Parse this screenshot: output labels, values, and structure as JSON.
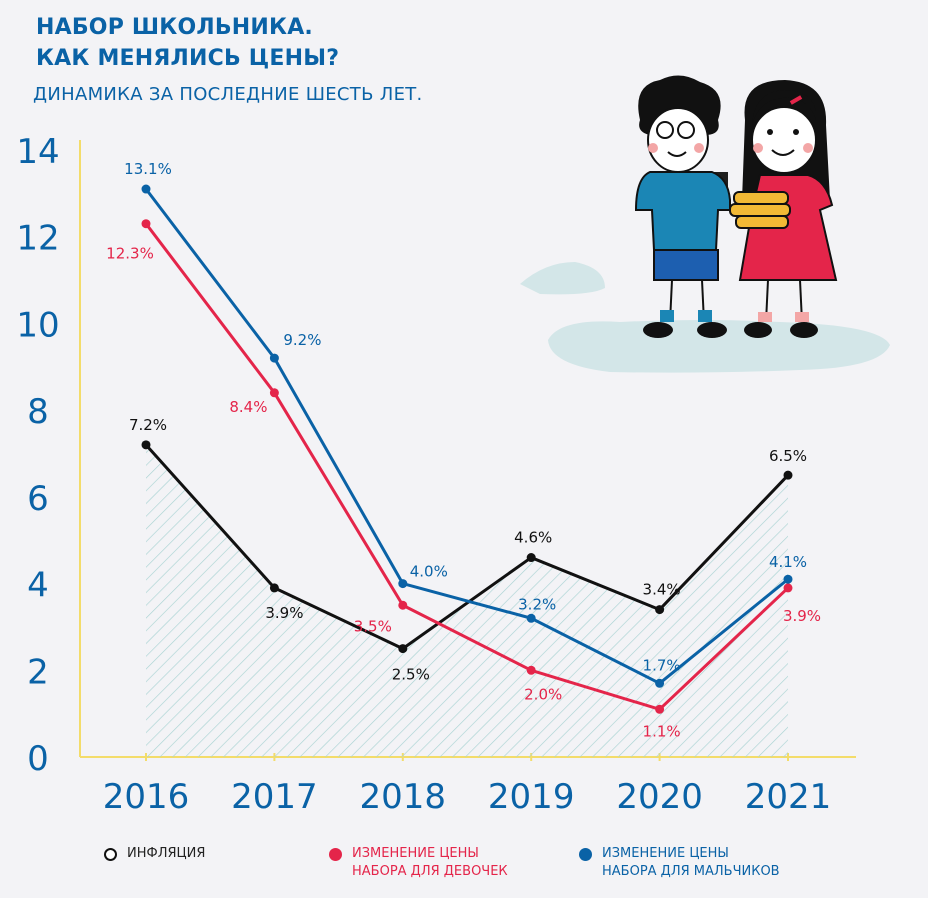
{
  "header": {
    "title_line1": "НАБОР ШКОЛЬНИКА.",
    "title_line2": "КАК МЕНЯЛИСЬ ЦЕНЫ?",
    "subtitle": "ДИНАМИКА ЗА ПОСЛЕДНИЕ ШЕСТЬ ЛЕТ."
  },
  "colors": {
    "inflation": "#111111",
    "girls": "#e4254a",
    "boys": "#0a62a6",
    "axis": "#f3dc6a",
    "hatch": "#a9d3d3",
    "title": "#0a62a6"
  },
  "legend": [
    {
      "line1": "ИНФЛЯЦИЯ",
      "line2": ""
    },
    {
      "line1": "ИЗМЕНЕНИЕ ЦЕНЫ",
      "line2": "НАБОРА ДЛЯ ДЕВОЧЕК"
    },
    {
      "line1": "ИЗМЕНЕНИЕ ЦЕНЫ",
      "line2": "НАБОРА ДЛЯ МАЛЬЧИКОВ"
    }
  ],
  "chart_data": {
    "type": "line",
    "title": "НАБОР ШКОЛЬНИКА. КАК МЕНЯЛИСЬ ЦЕНЫ?",
    "subtitle": "ДИНАМИКА ЗА ПОСЛЕДНИЕ ШЕСТЬ ЛЕТ.",
    "xlabel": "",
    "ylabel": "",
    "categories": [
      "2016",
      "2017",
      "2018",
      "2019",
      "2020",
      "2021"
    ],
    "ylim": [
      0,
      14
    ],
    "yticks": [
      "0",
      "2",
      "4",
      "6",
      "8",
      "10",
      "12",
      "14"
    ],
    "series": [
      {
        "name": "Инфляция",
        "values": [
          7.2,
          3.9,
          2.5,
          4.6,
          3.4,
          6.5
        ],
        "labels": [
          "7.2%",
          "3.9%",
          "2.5%",
          "4.6%",
          "3.4%",
          "6.5%"
        ],
        "filled": true
      },
      {
        "name": "Изменение цены набора для девочек",
        "values": [
          12.3,
          8.4,
          3.5,
          2.0,
          1.1,
          3.9
        ],
        "labels": [
          "12.3%",
          "8.4%",
          "3.5%",
          "2.0%",
          "1.1%",
          "3.9%"
        ]
      },
      {
        "name": "Изменение цены набора для мальчиков",
        "values": [
          13.1,
          9.2,
          4.0,
          3.2,
          1.7,
          4.1
        ],
        "labels": [
          "13.1%",
          "9.2%",
          "4.0%",
          "3.2%",
          "1.7%",
          "4.1%"
        ]
      }
    ],
    "legend_position": "bottom"
  }
}
